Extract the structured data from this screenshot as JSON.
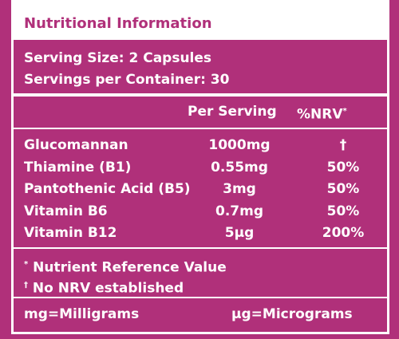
{
  "header": {
    "title": "Nutritional Information"
  },
  "serving": [
    "Serving Size: 2 Capsules",
    "Servings per Container: 30"
  ],
  "table": {
    "columns": {
      "per_serving": "Per Serving",
      "nrv": "%NRV",
      "nrv_mark": "*"
    },
    "rows": [
      [
        "Glucomannan",
        "1000mg",
        "†"
      ],
      [
        "Thiamine (B1)",
        "0.55mg",
        "50%"
      ],
      [
        "Pantothenic Acid (B5)",
        "3mg",
        "50%"
      ],
      [
        "Vitamin B6",
        "0.7mg",
        "50%"
      ],
      [
        "Vitamin B12",
        "5µg",
        "200%"
      ]
    ]
  },
  "footnotes": [
    {
      "mark": "*",
      "text": "Nutrient Reference Value"
    },
    {
      "mark": "†",
      "text": "No NRV established"
    }
  ],
  "units": [
    "mg=Milligrams",
    "µg=Micrograms"
  ]
}
